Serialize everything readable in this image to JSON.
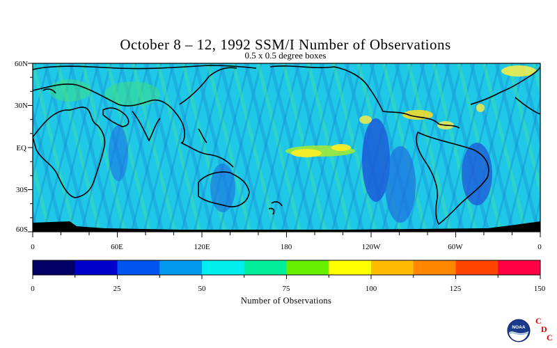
{
  "map": {
    "title": "October 8 – 12, 1992 SSM/I Number of Observations",
    "subtitle": "0.5 x 0.5 degree boxes",
    "lat_labels": [
      "60N",
      "30N",
      "EQ",
      "30S",
      "60S"
    ],
    "lon_labels": [
      "0",
      "60E",
      "120E",
      "180",
      "120W",
      "60W",
      "0"
    ]
  },
  "colorbar": {
    "title": "Number of Observations",
    "tick_labels": [
      "0",
      "25",
      "50",
      "75",
      "100",
      "125",
      "150"
    ],
    "colors": [
      "#000066",
      "#0000cc",
      "#0055ee",
      "#0099ee",
      "#00eeee",
      "#00ee99",
      "#66ee00",
      "#ffff00",
      "#ffbb00",
      "#ff8800",
      "#ff4400",
      "#ff0044"
    ]
  },
  "logo": {
    "agency": "NOAA",
    "letters": [
      "C",
      "D",
      "C"
    ]
  }
}
